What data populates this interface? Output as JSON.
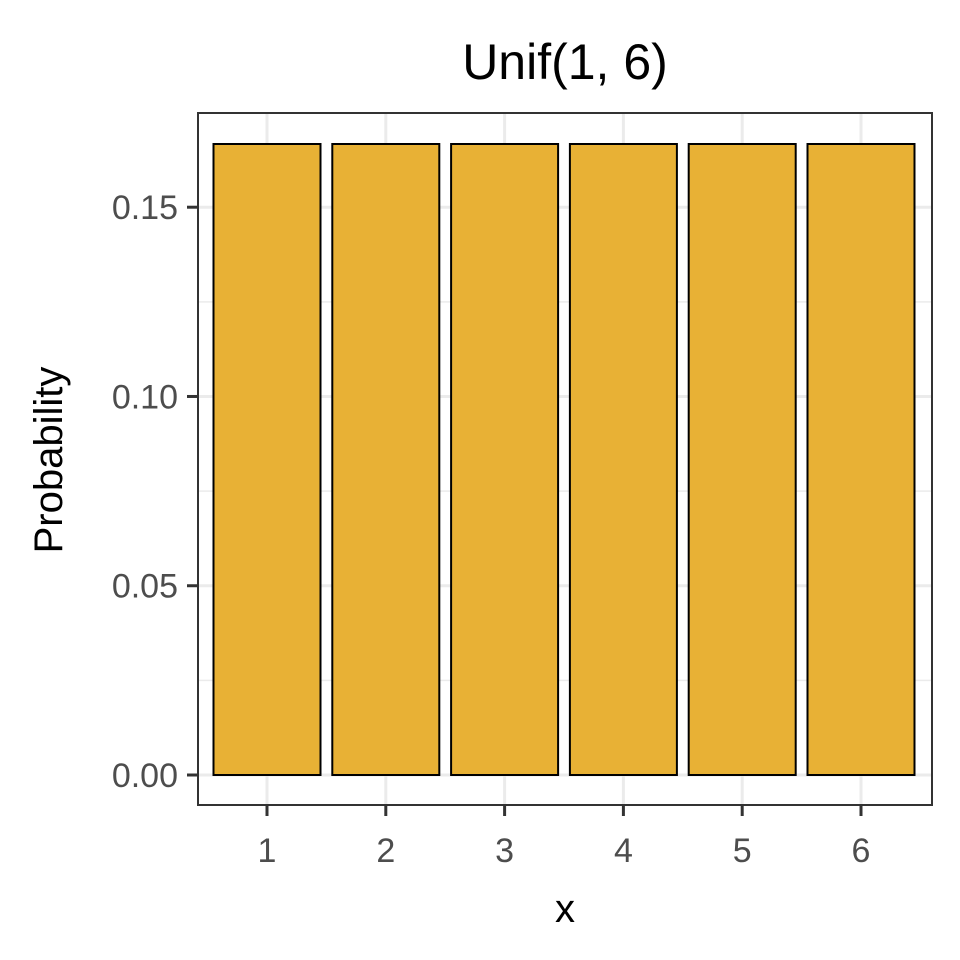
{
  "chart_data": {
    "type": "bar",
    "title": "Unif(1, 6)",
    "xlabel": "x",
    "ylabel": "Probability",
    "categories": [
      "1",
      "2",
      "3",
      "4",
      "5",
      "6"
    ],
    "values": [
      0.1667,
      0.1667,
      0.1667,
      0.1667,
      0.1667,
      0.1667
    ],
    "ylim": [
      0,
      0.1667
    ],
    "yticks": [
      0.0,
      0.05,
      0.1,
      0.15
    ],
    "ytick_labels": [
      "0.00",
      "0.05",
      "0.10",
      "0.15"
    ],
    "grid": true,
    "bar_color": "#E8B135",
    "bar_edge_color": "#000000"
  }
}
